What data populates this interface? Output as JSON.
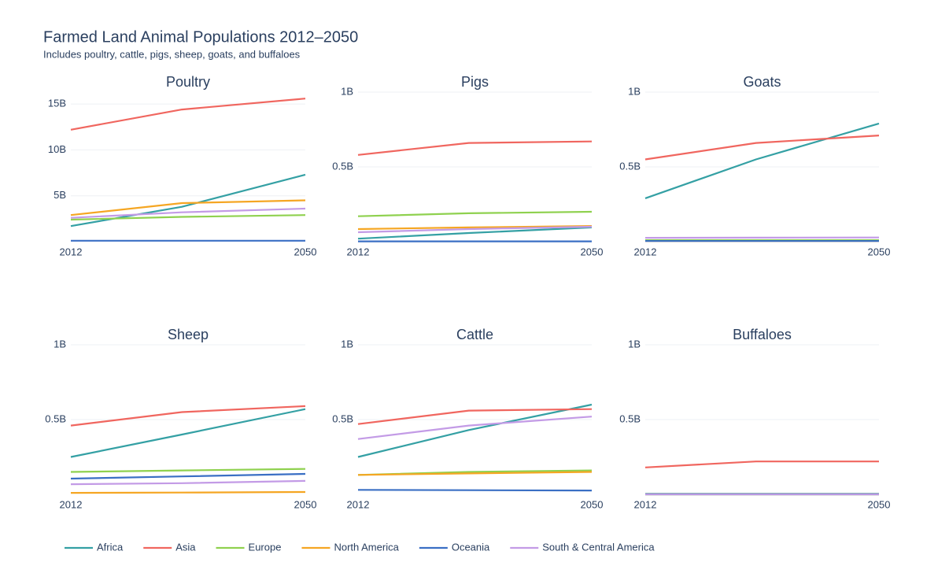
{
  "title": "Farmed Land Animal Populations 2012–2050",
  "subtitle": "Includes poultry, cattle, pigs, sheep, goats, and buffaloes",
  "chart_data": [
    {
      "type": "line",
      "title": "Poultry",
      "x": [
        2012,
        2030,
        2050
      ],
      "xlim": [
        2012,
        2050
      ],
      "xticks": [
        2012,
        2050
      ],
      "ylim": [
        0,
        16.3
      ],
      "yticks": [
        {
          "value": 5,
          "label": "5B"
        },
        {
          "value": 10,
          "label": "10B"
        },
        {
          "value": 15,
          "label": "15B"
        }
      ],
      "grid": true,
      "series": [
        {
          "name": "Africa",
          "color": "#34a0a4",
          "values": [
            1.7,
            3.8,
            7.3
          ]
        },
        {
          "name": "Asia",
          "color": "#f0665f",
          "values": [
            12.2,
            14.4,
            15.6
          ]
        },
        {
          "name": "Europe",
          "color": "#8fd14f",
          "values": [
            2.4,
            2.7,
            2.9
          ]
        },
        {
          "name": "North America",
          "color": "#f5a623",
          "values": [
            2.9,
            4.2,
            4.5
          ]
        },
        {
          "name": "Oceania",
          "color": "#3a6fc4",
          "values": [
            0.1,
            0.1,
            0.1
          ]
        },
        {
          "name": "South & Central America",
          "color": "#c39be6",
          "values": [
            2.6,
            3.2,
            3.6
          ]
        }
      ]
    },
    {
      "type": "line",
      "title": "Pigs",
      "x": [
        2012,
        2030,
        2050
      ],
      "xlim": [
        2012,
        2050
      ],
      "xticks": [
        2012,
        2050
      ],
      "ylim": [
        0,
        1
      ],
      "yticks": [
        {
          "value": 0.5,
          "label": "0.5B"
        },
        {
          "value": 1,
          "label": "1B"
        }
      ],
      "grid": true,
      "series": [
        {
          "name": "Africa",
          "color": "#34a0a4",
          "values": [
            0.02,
            0.058,
            0.095
          ]
        },
        {
          "name": "Asia",
          "color": "#f0665f",
          "values": [
            0.58,
            0.66,
            0.67
          ]
        },
        {
          "name": "Europe",
          "color": "#8fd14f",
          "values": [
            0.17,
            0.19,
            0.2
          ]
        },
        {
          "name": "North America",
          "color": "#f5a623",
          "values": [
            0.084,
            0.095,
            0.105
          ]
        },
        {
          "name": "Oceania",
          "color": "#3a6fc4",
          "values": [
            0.002,
            0.002,
            0.002
          ]
        },
        {
          "name": "South & Central America",
          "color": "#c39be6",
          "values": [
            0.063,
            0.084,
            0.1
          ]
        }
      ]
    },
    {
      "type": "line",
      "title": "Goats",
      "x": [
        2012,
        2030,
        2050
      ],
      "xlim": [
        2012,
        2050
      ],
      "xticks": [
        2012,
        2050
      ],
      "ylim": [
        0,
        1
      ],
      "yticks": [
        {
          "value": 0.5,
          "label": "0.5B"
        },
        {
          "value": 1,
          "label": "1B"
        }
      ],
      "grid": true,
      "series": [
        {
          "name": "Africa",
          "color": "#34a0a4",
          "values": [
            0.29,
            0.55,
            0.79
          ]
        },
        {
          "name": "Asia",
          "color": "#f0665f",
          "values": [
            0.55,
            0.66,
            0.71
          ]
        },
        {
          "name": "Europe",
          "color": "#8fd14f",
          "values": [
            0.01,
            0.01,
            0.01
          ]
        },
        {
          "name": "North America",
          "color": "#f5a623",
          "values": [
            0.005,
            0.005,
            0.005
          ]
        },
        {
          "name": "Oceania",
          "color": "#3a6fc4",
          "values": [
            0.005,
            0.005,
            0.005
          ]
        },
        {
          "name": "South & Central America",
          "color": "#c39be6",
          "values": [
            0.026,
            0.027,
            0.028
          ]
        }
      ]
    },
    {
      "type": "line",
      "title": "Sheep",
      "x": [
        2012,
        2030,
        2050
      ],
      "xlim": [
        2012,
        2050
      ],
      "xticks": [
        2012,
        2050
      ],
      "ylim": [
        0,
        1
      ],
      "yticks": [
        {
          "value": 0.5,
          "label": "0.5B"
        },
        {
          "value": 1,
          "label": "1B"
        }
      ],
      "grid": true,
      "series": [
        {
          "name": "Africa",
          "color": "#34a0a4",
          "values": [
            0.25,
            0.4,
            0.57
          ]
        },
        {
          "name": "Asia",
          "color": "#f0665f",
          "values": [
            0.46,
            0.55,
            0.59
          ]
        },
        {
          "name": "Europe",
          "color": "#8fd14f",
          "values": [
            0.15,
            0.16,
            0.17
          ]
        },
        {
          "name": "North America",
          "color": "#f5a623",
          "values": [
            0.01,
            0.012,
            0.016
          ]
        },
        {
          "name": "Oceania",
          "color": "#3a6fc4",
          "values": [
            0.105,
            0.12,
            0.137
          ]
        },
        {
          "name": "South & Central America",
          "color": "#c39be6",
          "values": [
            0.068,
            0.075,
            0.09
          ]
        }
      ]
    },
    {
      "type": "line",
      "title": "Cattle",
      "x": [
        2012,
        2030,
        2050
      ],
      "xlim": [
        2012,
        2050
      ],
      "xticks": [
        2012,
        2050
      ],
      "ylim": [
        0,
        1
      ],
      "yticks": [
        {
          "value": 0.5,
          "label": "0.5B"
        },
        {
          "value": 1,
          "label": "1B"
        }
      ],
      "grid": true,
      "series": [
        {
          "name": "Africa",
          "color": "#34a0a4",
          "values": [
            0.25,
            0.43,
            0.6
          ]
        },
        {
          "name": "Asia",
          "color": "#f0665f",
          "values": [
            0.47,
            0.56,
            0.57
          ]
        },
        {
          "name": "Europe",
          "color": "#8fd14f",
          "values": [
            0.13,
            0.15,
            0.16
          ]
        },
        {
          "name": "North America",
          "color": "#f5a623",
          "values": [
            0.13,
            0.14,
            0.15
          ]
        },
        {
          "name": "Oceania",
          "color": "#3a6fc4",
          "values": [
            0.03,
            0.028,
            0.026
          ]
        },
        {
          "name": "South & Central America",
          "color": "#c39be6",
          "values": [
            0.37,
            0.46,
            0.52
          ]
        }
      ]
    },
    {
      "type": "line",
      "title": "Buffaloes",
      "x": [
        2012,
        2030,
        2050
      ],
      "xlim": [
        2012,
        2050
      ],
      "xticks": [
        2012,
        2050
      ],
      "ylim": [
        0,
        1
      ],
      "yticks": [
        {
          "value": 0.5,
          "label": "0.5B"
        },
        {
          "value": 1,
          "label": "1B"
        }
      ],
      "grid": true,
      "series": [
        {
          "name": "Africa",
          "color": "#34a0a4",
          "values": [
            0.004,
            0.004,
            0.004
          ]
        },
        {
          "name": "Asia",
          "color": "#f0665f",
          "values": [
            0.18,
            0.22,
            0.22
          ]
        },
        {
          "name": "Europe",
          "color": "#8fd14f",
          "values": [
            0.001,
            0.001,
            0.001
          ]
        },
        {
          "name": "North America",
          "color": "#f5a623",
          "values": [
            0,
            0,
            0
          ]
        },
        {
          "name": "Oceania",
          "color": "#3a6fc4",
          "values": [
            0,
            0,
            0
          ]
        },
        {
          "name": "South & Central America",
          "color": "#c39be6",
          "values": [
            0.001,
            0.001,
            0.001
          ]
        }
      ]
    }
  ]
}
